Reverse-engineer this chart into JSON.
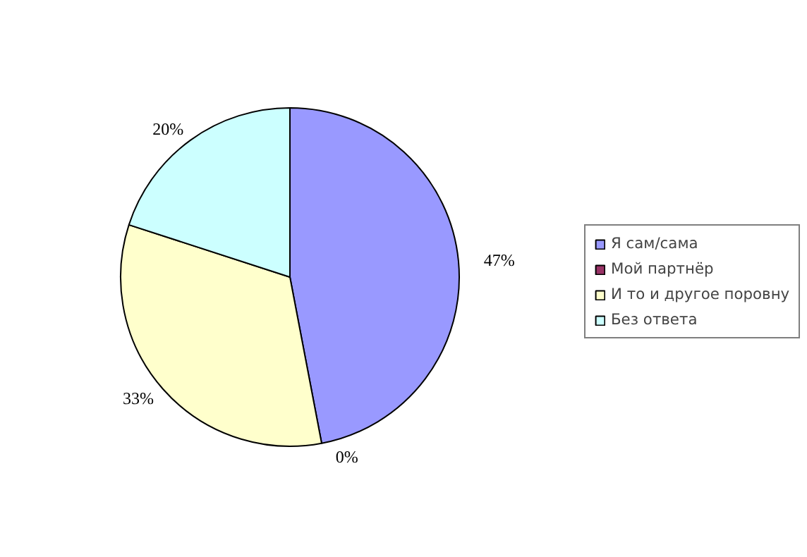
{
  "chart_data": {
    "type": "pie",
    "categories": [
      "Я сам/сама",
      "Мой партнёр",
      "И то и другое поровну",
      "Без ответа"
    ],
    "values": [
      47,
      0,
      33,
      20
    ],
    "colors": [
      "#9999ff",
      "#993366",
      "#ffffcc",
      "#ccffff"
    ],
    "value_labels": [
      "47%",
      "0%",
      "33%",
      "20%"
    ],
    "legend": "right"
  }
}
